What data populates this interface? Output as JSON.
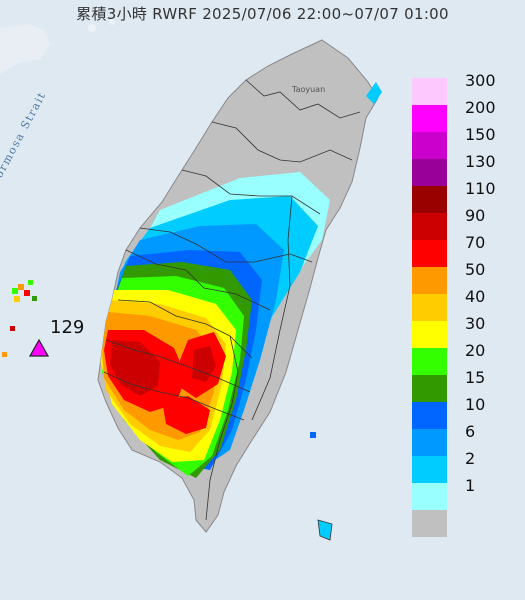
{
  "title": "累積3小時 RWRF 2025/07/06 22:00~07/07 01:00",
  "labels": {
    "strait": "Formosa Strait",
    "taoyuan": "Taoyuan"
  },
  "max_marker": {
    "value": "129",
    "color": "#ff00ff"
  },
  "legend": {
    "items": [
      {
        "label": "300",
        "color": "#fdc8fd"
      },
      {
        "label": "200",
        "color": "#ff00ff"
      },
      {
        "label": "150",
        "color": "#cc00cc"
      },
      {
        "label": "130",
        "color": "#990099"
      },
      {
        "label": "110",
        "color": "#990000"
      },
      {
        "label": "90",
        "color": "#cc0000"
      },
      {
        "label": "70",
        "color": "#ff0000"
      },
      {
        "label": "50",
        "color": "#ff9900"
      },
      {
        "label": "40",
        "color": "#ffcc00"
      },
      {
        "label": "30",
        "color": "#ffff00"
      },
      {
        "label": "20",
        "color": "#33ff00"
      },
      {
        "label": "15",
        "color": "#339900"
      },
      {
        "label": "10",
        "color": "#0066ff"
      },
      {
        "label": "6",
        "color": "#0099ff"
      },
      {
        "label": "2",
        "color": "#00ccff"
      },
      {
        "label": "1",
        "color": "#99ffff"
      },
      {
        "label": "",
        "color": "#c0c0c0"
      }
    ]
  }
}
